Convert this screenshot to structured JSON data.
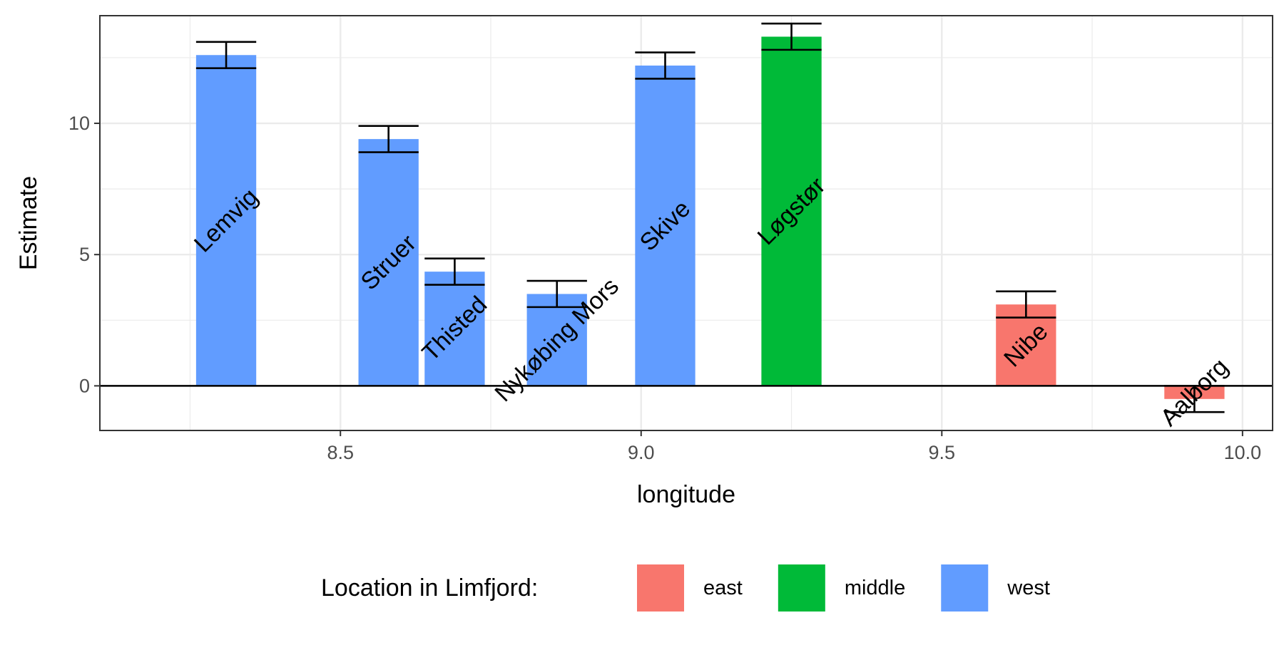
{
  "chart_data": {
    "type": "bar",
    "title": "",
    "xlabel": "longitude",
    "ylabel": "Estimate",
    "xlim": [
      8.1,
      10.05
    ],
    "ylim": [
      -1.7,
      14.1
    ],
    "xticks": [
      8.5,
      9.0,
      9.5,
      10.0
    ],
    "xtick_labels": [
      "8.5",
      "9.0",
      "9.5",
      "10.0"
    ],
    "yticks": [
      0,
      5,
      10
    ],
    "ytick_labels": [
      "0",
      "5",
      "10"
    ],
    "grid": true,
    "bar_width": 0.1,
    "bars": [
      {
        "label": "Lemvig",
        "x": 8.31,
        "value": 12.6,
        "err_low": 12.1,
        "err_high": 13.1,
        "group": "west"
      },
      {
        "label": "Struer",
        "x": 8.58,
        "value": 9.4,
        "err_low": 8.9,
        "err_high": 9.9,
        "group": "west"
      },
      {
        "label": "Thisted",
        "x": 8.69,
        "value": 4.35,
        "err_low": 3.85,
        "err_high": 4.85,
        "group": "west"
      },
      {
        "label": "Nykøbing Mors",
        "x": 8.86,
        "value": 3.5,
        "err_low": 3.0,
        "err_high": 4.0,
        "group": "west"
      },
      {
        "label": "Skive",
        "x": 9.04,
        "value": 12.2,
        "err_low": 11.7,
        "err_high": 12.7,
        "group": "west"
      },
      {
        "label": "Løgstør",
        "x": 9.25,
        "value": 13.3,
        "err_low": 12.8,
        "err_high": 13.8,
        "group": "middle"
      },
      {
        "label": "Nibe",
        "x": 9.64,
        "value": 3.1,
        "err_low": 2.6,
        "err_high": 3.6,
        "group": "east"
      },
      {
        "label": "Aalborg",
        "x": 9.92,
        "value": -0.5,
        "err_low": -1.0,
        "err_high": 0.0,
        "group": "east"
      }
    ],
    "legend": {
      "position": "bottom",
      "title": "Location in Limfjord:",
      "entries": [
        {
          "name": "east",
          "color": "#F8766D"
        },
        {
          "name": "middle",
          "color": "#00BA38"
        },
        {
          "name": "west",
          "color": "#619CFF"
        }
      ]
    }
  }
}
